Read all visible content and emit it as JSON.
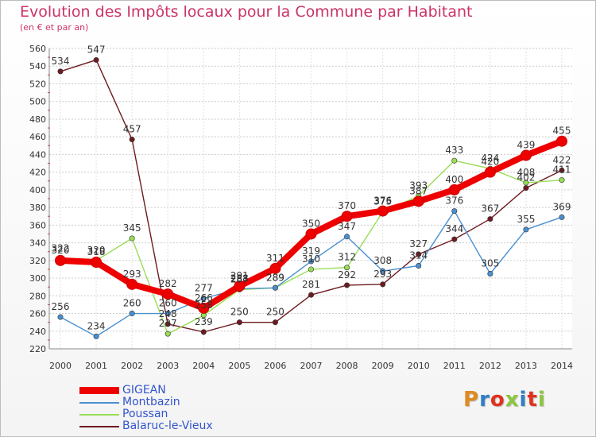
{
  "title": "Evolution des Impôts locaux pour la Commune par Habitant",
  "subtitle": "(en € et par an)",
  "logo": "Proxiti",
  "logo_colors": [
    "#e08a1e",
    "#2f7fc8",
    "#e0321e",
    "#8cc63f",
    "#2f7fc8",
    "#e0321e",
    "#8cc63f"
  ],
  "chart_data": {
    "type": "line",
    "title": "Evolution des Impôts locaux pour la Commune par Habitant",
    "subtitle": "(en € et par an)",
    "xlabel": "",
    "ylabel": "",
    "ylim": [
      220,
      560
    ],
    "yticks": [
      220,
      240,
      260,
      280,
      300,
      320,
      340,
      360,
      380,
      400,
      420,
      440,
      460,
      480,
      500,
      520,
      540,
      560
    ],
    "x": [
      "2000",
      "2001",
      "2002",
      "2003",
      "2004",
      "2005",
      "2006",
      "2007",
      "2008",
      "2009",
      "2010",
      "2011",
      "2012",
      "2013",
      "2014"
    ],
    "grid": "horizontal",
    "legend_position": "bottom-left",
    "series": [
      {
        "name": "Balaruc-le-Vieux",
        "color": "#6e1a1f",
        "values": [
          534,
          547,
          457,
          248,
          239,
          250,
          250,
          281,
          292,
          293,
          327,
          344,
          367,
          402,
          422
        ],
        "labels": [
          "534",
          "547",
          "457",
          "248",
          "239",
          "250",
          "250",
          "281",
          "292",
          "293",
          "327",
          "344",
          "367",
          "402",
          "422"
        ]
      },
      {
        "name": "Poussan",
        "color": "#99dd55",
        "values": [
          322,
          320,
          345,
          237,
          258,
          287,
          289,
          310,
          312,
          375,
          393,
          433,
          424,
          408,
          411
        ],
        "labels": [
          "322",
          "320",
          "345",
          "237",
          "258",
          "287",
          "289",
          "310",
          "312",
          "375",
          "393",
          "433",
          "424",
          "408",
          "411"
        ]
      },
      {
        "name": "Montbazin",
        "color": "#4a90d0",
        "values": [
          256,
          234,
          260,
          260,
          277,
          288,
          289,
          319,
          347,
          308,
          314,
          376,
          305,
          355,
          369
        ],
        "labels": [
          "256",
          "234",
          "260",
          "260",
          "277",
          "288",
          "289",
          "319",
          "347",
          "308",
          "314",
          "376",
          "305",
          "355",
          "369"
        ]
      },
      {
        "name": "GIGEAN",
        "color": "#ee0000",
        "values": [
          320,
          318,
          293,
          282,
          266,
          291,
          311,
          350,
          370,
          376,
          387,
          400,
          420,
          439,
          455
        ],
        "labels": [
          "320",
          "318",
          "293",
          "282",
          "266",
          "291",
          "311",
          "350",
          "370",
          "376",
          "387",
          "400",
          "420",
          "439",
          "455"
        ]
      }
    ]
  },
  "legend": [
    {
      "label": "GIGEAN",
      "color": "#ee0000"
    },
    {
      "label": "Montbazin",
      "color": "#4a90d0"
    },
    {
      "label": "Poussan",
      "color": "#99dd55"
    },
    {
      "label": "Balaruc-le-Vieux",
      "color": "#6e1a1f"
    }
  ]
}
